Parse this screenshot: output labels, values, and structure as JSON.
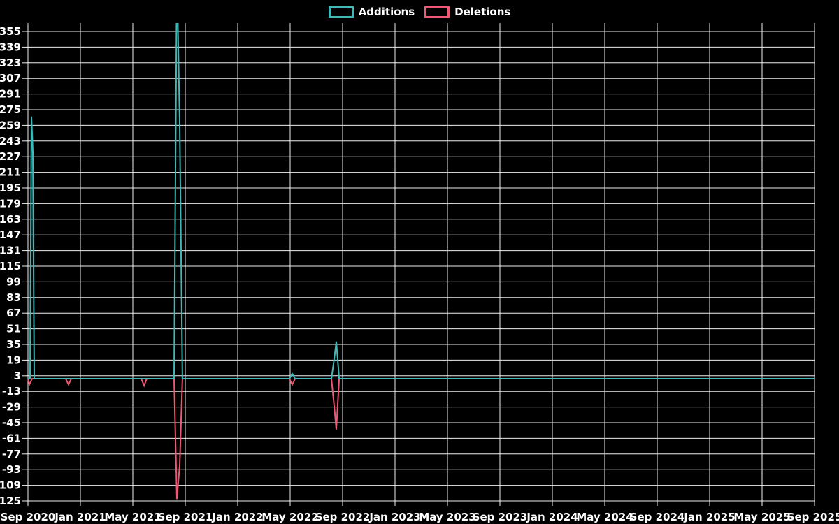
{
  "legend": {
    "items": [
      {
        "label": "Additions",
        "color": "#41b7b7"
      },
      {
        "label": "Deletions",
        "color": "#ef5874"
      }
    ]
  },
  "chart_data": {
    "type": "line",
    "title": "",
    "background_color": "#000000",
    "grid": true,
    "grid_color": "#eeeeee",
    "text_color": "#ffffff",
    "legend_position": "top-center",
    "x_axis": {
      "tick_labels": [
        "Sep 2020",
        "Jan 2021",
        "May 2021",
        "Sep 2021",
        "Jan 2022",
        "May 2022",
        "Sep 2022",
        "Jan 2023",
        "May 2023",
        "Sep 2023",
        "Jan 2024",
        "May 2024",
        "Sep 2024",
        "Jan 2025",
        "May 2025",
        "Sep 2025"
      ],
      "range_start": "Sep 2020",
      "range_end": "Sep 2025"
    },
    "y_axis": {
      "min": -125,
      "max": 355,
      "step": 16,
      "ticks": [
        355,
        339,
        323,
        307,
        291,
        275,
        259,
        243,
        227,
        211,
        195,
        179,
        163,
        147,
        131,
        115,
        99,
        83,
        67,
        51,
        35,
        19,
        3,
        -13,
        -29,
        -45,
        -61,
        -77,
        -93,
        -109,
        -125
      ]
    },
    "series": [
      {
        "name": "Additions",
        "color": "#41b7b7",
        "points": [
          [
            0.0,
            0
          ],
          [
            0.0027,
            0
          ],
          [
            0.0044,
            268
          ],
          [
            0.0062,
            232
          ],
          [
            0.008,
            0
          ],
          [
            0.1858,
            0
          ],
          [
            0.1893,
            420
          ],
          [
            0.1929,
            261
          ],
          [
            0.1964,
            0
          ],
          [
            0.3324,
            0
          ],
          [
            0.336,
            5
          ],
          [
            0.3396,
            0
          ],
          [
            0.3858,
            0
          ],
          [
            0.3893,
            20
          ],
          [
            0.392,
            38
          ],
          [
            0.3956,
            0
          ],
          [
            1.0,
            0
          ]
        ]
      },
      {
        "name": "Deletions",
        "color": "#ef5874",
        "points": [
          [
            0.0,
            0
          ],
          [
            0.0018,
            -6
          ],
          [
            0.0053,
            0
          ],
          [
            0.048,
            0
          ],
          [
            0.0516,
            -6
          ],
          [
            0.0551,
            0
          ],
          [
            0.144,
            0
          ],
          [
            0.1476,
            -7
          ],
          [
            0.1511,
            0
          ],
          [
            0.1858,
            0
          ],
          [
            0.1893,
            -123
          ],
          [
            0.1929,
            -89
          ],
          [
            0.1964,
            0
          ],
          [
            0.3324,
            0
          ],
          [
            0.336,
            -6
          ],
          [
            0.3396,
            0
          ],
          [
            0.3858,
            0
          ],
          [
            0.3893,
            -28
          ],
          [
            0.392,
            -52
          ],
          [
            0.3956,
            0
          ],
          [
            1.0,
            0
          ]
        ]
      }
    ],
    "notes": "Additions spike just before Sep 2021 is clipped above the chart top (exceeds 355)."
  }
}
